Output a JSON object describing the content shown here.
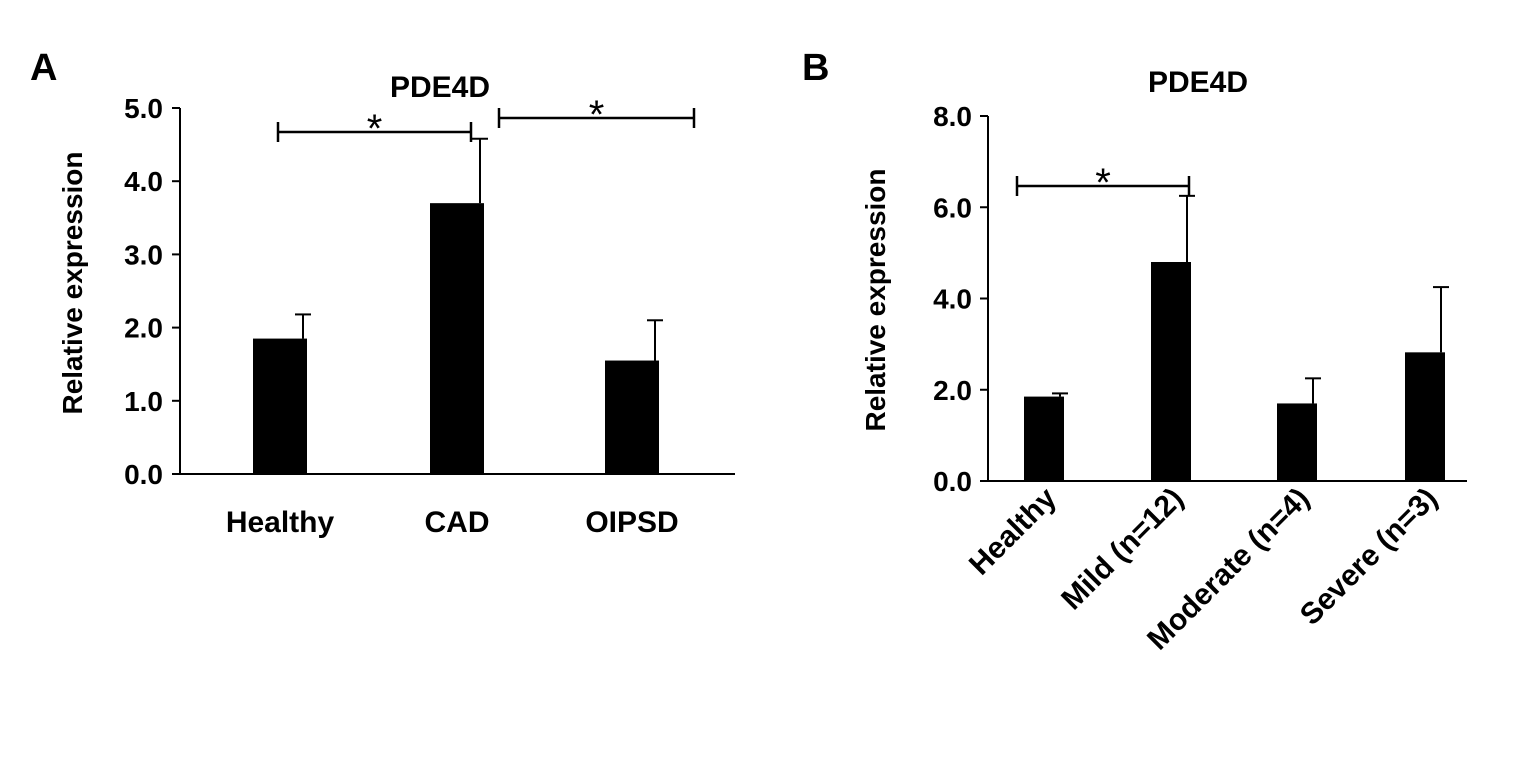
{
  "chart_data": [
    {
      "type": "bar",
      "panel": "A",
      "title": "PDE4D",
      "ylabel": "Relative expression",
      "xlabel": "",
      "categories": [
        "Healthy",
        "CAD",
        "OIPSD"
      ],
      "values": [
        1.85,
        3.7,
        1.55
      ],
      "errors": [
        0.33,
        0.88,
        0.55
      ],
      "ylim": [
        0,
        5
      ],
      "yticks": [
        "0.0",
        "1.0",
        "2.0",
        "3.0",
        "4.0",
        "5.0"
      ],
      "bar_color": "#000000",
      "grid": false,
      "significance": [
        {
          "from": "Healthy",
          "to": "CAD",
          "label": "*"
        },
        {
          "from": "CAD",
          "to": "OIPSD",
          "label": "*"
        }
      ]
    },
    {
      "type": "bar",
      "panel": "B",
      "title": "PDE4D",
      "ylabel": "Relative expression",
      "xlabel": "",
      "categories": [
        "Healthy",
        "Mild (n=12)",
        "Moderate (n=4)",
        "Severe (n=3)"
      ],
      "values": [
        1.85,
        4.8,
        1.7,
        2.82
      ],
      "errors": [
        0.07,
        1.45,
        0.55,
        1.43
      ],
      "ylim": [
        0,
        8
      ],
      "yticks": [
        "0.0",
        "2.0",
        "4.0",
        "6.0",
        "8.0"
      ],
      "bar_color": "#000000",
      "grid": false,
      "significance": [
        {
          "from": "Healthy",
          "to": "Mild (n=12)",
          "label": "*"
        }
      ]
    }
  ]
}
